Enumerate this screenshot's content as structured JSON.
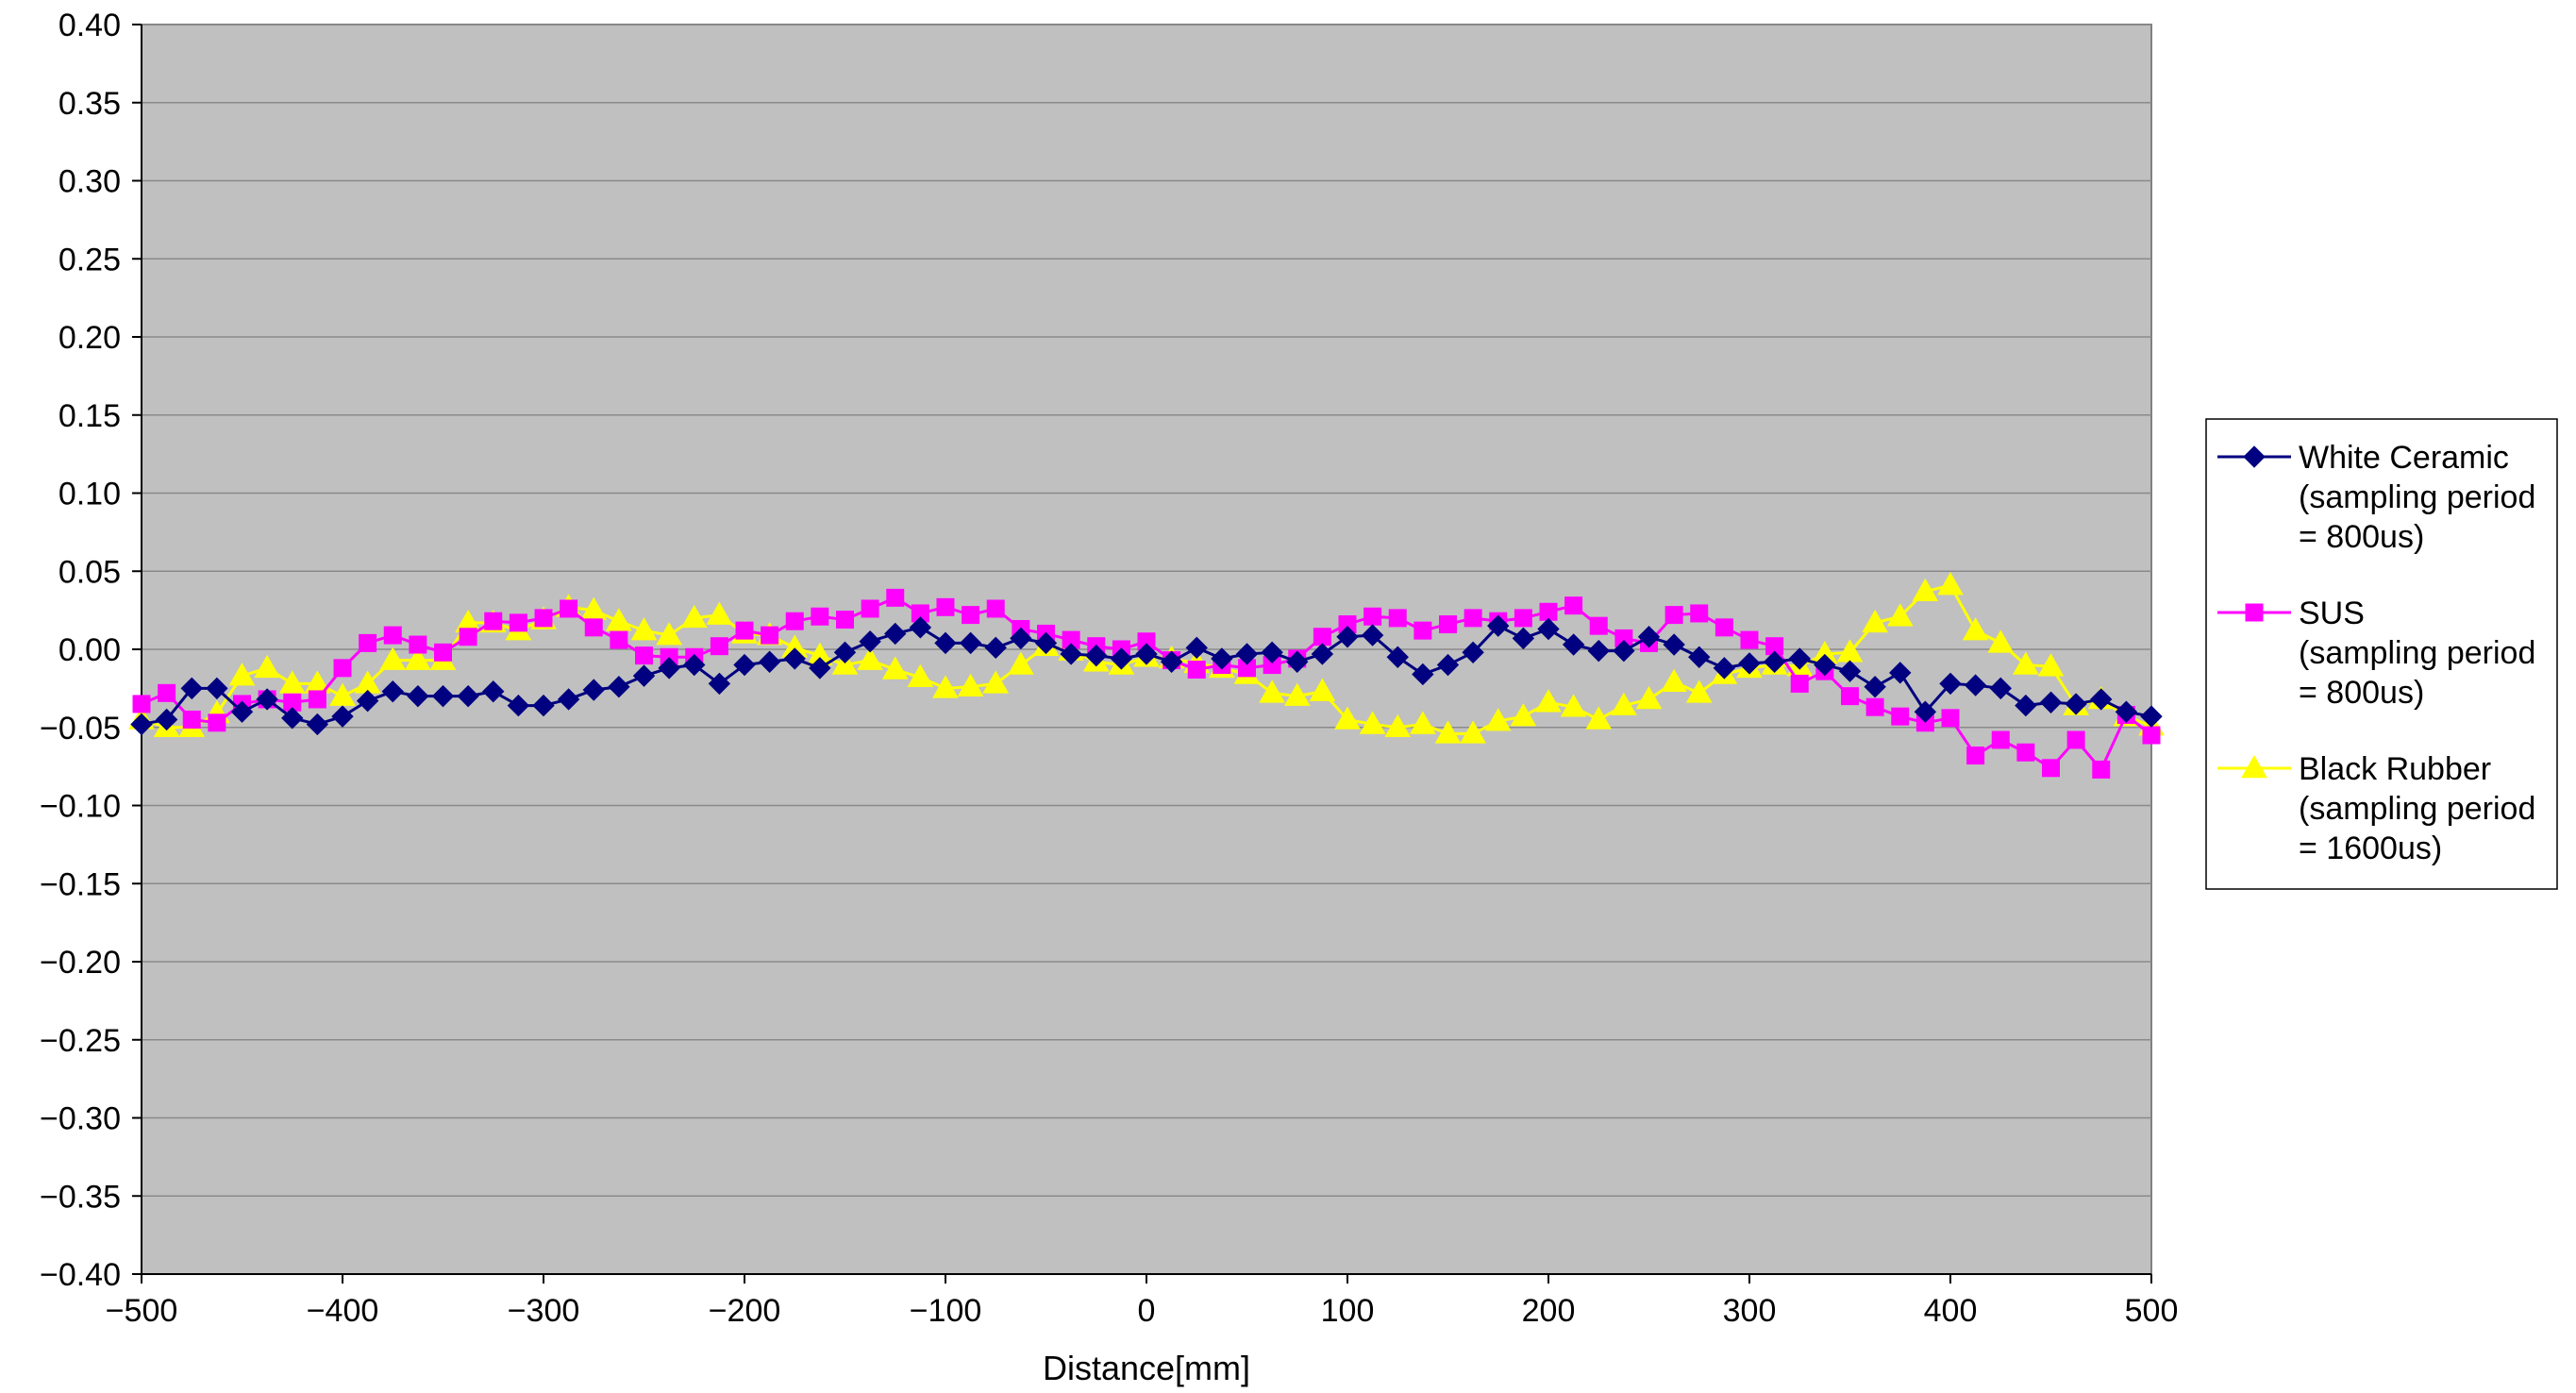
{
  "chart_data": {
    "type": "line",
    "title": "",
    "xlabel": "Distance[mm]",
    "ylabel": "",
    "xlim": [
      -500,
      500
    ],
    "ylim": [
      -0.4,
      0.4
    ],
    "x_ticks": [
      -500,
      -400,
      -300,
      -200,
      -100,
      0,
      100,
      200,
      300,
      400,
      500
    ],
    "x_tick_labels": [
      "−500",
      "−400",
      "−300",
      "−200",
      "−100",
      "0",
      "100",
      "200",
      "300",
      "400",
      "500"
    ],
    "y_ticks": [
      0.4,
      0.35,
      0.3,
      0.25,
      0.2,
      0.15,
      0.1,
      0.05,
      0.0,
      -0.05,
      -0.1,
      -0.15,
      -0.2,
      -0.25,
      -0.3,
      -0.35,
      -0.4
    ],
    "y_tick_labels": [
      "0.40",
      "0.35",
      "0.30",
      "0.25",
      "0.20",
      "0.15",
      "0.10",
      "0.05",
      "0.00",
      "−0.05",
      "−0.10",
      "−0.15",
      "−0.20",
      "−0.25",
      "−0.30",
      "−0.35",
      "−0.40"
    ],
    "grid": {
      "horizontal": true,
      "vertical": false
    },
    "plot_background": "#c0c0c0",
    "legend_position": "right",
    "series": [
      {
        "name": "White Ceramic",
        "legend_lines": [
          "White Ceramic",
          "(sampling period",
          "= 800us)"
        ],
        "color": "#000080",
        "marker": "diamond",
        "x": [
          -500,
          -487.5,
          -475,
          -462.5,
          -450,
          -437.5,
          -425,
          -412.5,
          -400,
          -387.5,
          -375,
          -362.5,
          -350,
          -337.5,
          -325,
          -312.5,
          -300,
          -287.5,
          -275,
          -262.5,
          -250,
          -237.5,
          -225,
          -212.5,
          -200,
          -187.5,
          -175,
          -162.5,
          -150,
          -137.5,
          -125,
          -112.5,
          -100,
          -87.5,
          -75,
          -62.5,
          -50,
          -37.5,
          -25,
          -12.5,
          0,
          12.5,
          25,
          37.5,
          50,
          62.5,
          75,
          87.5,
          100,
          112.5,
          125,
          137.5,
          150,
          162.5,
          175,
          187.5,
          200,
          212.5,
          225,
          237.5,
          250,
          262.5,
          275,
          287.5,
          300,
          312.5,
          325,
          337.5,
          350,
          362.5,
          375,
          387.5,
          400,
          412.5,
          425,
          437.5,
          450,
          462.5,
          475,
          487.5,
          500
        ],
        "values": [
          -0.048,
          -0.045,
          -0.025,
          -0.025,
          -0.04,
          -0.032,
          -0.044,
          -0.048,
          -0.043,
          -0.033,
          -0.027,
          -0.03,
          -0.03,
          -0.03,
          -0.027,
          -0.036,
          -0.036,
          -0.032,
          -0.026,
          -0.024,
          -0.017,
          -0.012,
          -0.01,
          -0.022,
          -0.01,
          -0.008,
          -0.006,
          -0.012,
          -0.002,
          0.005,
          0.01,
          0.014,
          0.004,
          0.004,
          0.001,
          0.007,
          0.004,
          -0.003,
          -0.004,
          -0.006,
          -0.003,
          -0.008,
          0.001,
          -0.006,
          -0.003,
          -0.002,
          -0.008,
          -0.003,
          0.008,
          0.009,
          -0.005,
          -0.016,
          -0.01,
          -0.002,
          0.015,
          0.007,
          0.013,
          0.003,
          -0.001,
          -0.001,
          0.008,
          0.003,
          -0.005,
          -0.012,
          -0.009,
          -0.008,
          -0.006,
          -0.01,
          -0.014,
          -0.024,
          -0.015,
          -0.04,
          -0.022,
          -0.023,
          -0.025,
          -0.036,
          -0.034,
          -0.035,
          -0.032,
          -0.04,
          -0.043
        ]
      },
      {
        "name": "SUS",
        "legend_lines": [
          "SUS",
          "(sampling period",
          "= 800us)"
        ],
        "color": "#ff00ff",
        "marker": "square",
        "x": [
          -500,
          -487.5,
          -475,
          -462.5,
          -450,
          -437.5,
          -425,
          -412.5,
          -400,
          -387.5,
          -375,
          -362.5,
          -350,
          -337.5,
          -325,
          -312.5,
          -300,
          -287.5,
          -275,
          -262.5,
          -250,
          -237.5,
          -225,
          -212.5,
          -200,
          -187.5,
          -175,
          -162.5,
          -150,
          -137.5,
          -125,
          -112.5,
          -100,
          -87.5,
          -75,
          -62.5,
          -50,
          -37.5,
          -25,
          -12.5,
          0,
          12.5,
          25,
          37.5,
          50,
          62.5,
          75,
          87.5,
          100,
          112.5,
          125,
          137.5,
          150,
          162.5,
          175,
          187.5,
          200,
          212.5,
          225,
          237.5,
          250,
          262.5,
          275,
          287.5,
          300,
          312.5,
          325,
          337.5,
          350,
          362.5,
          375,
          387.5,
          400,
          412.5,
          425,
          437.5,
          450,
          462.5,
          475,
          487.5,
          500
        ],
        "values": [
          -0.035,
          -0.028,
          -0.045,
          -0.047,
          -0.035,
          -0.032,
          -0.034,
          -0.032,
          -0.012,
          0.004,
          0.009,
          0.003,
          -0.002,
          0.008,
          0.018,
          0.017,
          0.02,
          0.026,
          0.014,
          0.006,
          -0.004,
          -0.005,
          -0.005,
          0.002,
          0.012,
          0.009,
          0.018,
          0.021,
          0.019,
          0.026,
          0.033,
          0.023,
          0.027,
          0.022,
          0.026,
          0.013,
          0.01,
          0.006,
          0.002,
          0.0,
          0.005,
          -0.007,
          -0.013,
          -0.01,
          -0.012,
          -0.01,
          -0.006,
          0.008,
          0.016,
          0.021,
          0.02,
          0.012,
          0.016,
          0.02,
          0.018,
          0.02,
          0.024,
          0.028,
          0.015,
          0.007,
          0.004,
          0.022,
          0.023,
          0.014,
          0.006,
          0.002,
          -0.022,
          -0.014,
          -0.03,
          -0.037,
          -0.043,
          -0.047,
          -0.044,
          -0.068,
          -0.058,
          -0.066,
          -0.076,
          -0.058,
          -0.077,
          -0.042,
          -0.055
        ]
      },
      {
        "name": "Black Rubber",
        "legend_lines": [
          "Black Rubber",
          "(sampling period",
          "= 1600us)"
        ],
        "color": "#ffff00",
        "marker": "triangle",
        "x": [
          -500,
          -487.5,
          -475,
          -462.5,
          -450,
          -437.5,
          -425,
          -412.5,
          -400,
          -387.5,
          -375,
          -362.5,
          -350,
          -337.5,
          -325,
          -312.5,
          -300,
          -287.5,
          -275,
          -262.5,
          -250,
          -237.5,
          -225,
          -212.5,
          -200,
          -187.5,
          -175,
          -162.5,
          -150,
          -137.5,
          -125,
          -112.5,
          -100,
          -87.5,
          -75,
          -62.5,
          -50,
          -37.5,
          -25,
          -12.5,
          0,
          12.5,
          25,
          37.5,
          50,
          62.5,
          75,
          87.5,
          100,
          112.5,
          125,
          137.5,
          150,
          162.5,
          175,
          187.5,
          200,
          212.5,
          225,
          237.5,
          250,
          262.5,
          275,
          287.5,
          300,
          312.5,
          325,
          337.5,
          350,
          362.5,
          375,
          387.5,
          400,
          412.5,
          425,
          437.5,
          450,
          462.5,
          475,
          487.5,
          500
        ],
        "values": [
          -0.045,
          -0.05,
          -0.05,
          -0.041,
          -0.017,
          -0.012,
          -0.022,
          -0.022,
          -0.03,
          -0.022,
          -0.007,
          -0.007,
          -0.007,
          0.017,
          0.017,
          0.012,
          0.019,
          0.027,
          0.025,
          0.018,
          0.012,
          0.009,
          0.02,
          0.022,
          0.01,
          0.009,
          0.001,
          -0.004,
          -0.01,
          -0.007,
          -0.013,
          -0.018,
          -0.025,
          -0.024,
          -0.022,
          -0.01,
          0.002,
          -0.001,
          -0.008,
          -0.01,
          -0.005,
          -0.006,
          -0.009,
          -0.012,
          -0.016,
          -0.028,
          -0.03,
          -0.027,
          -0.045,
          -0.048,
          -0.05,
          -0.048,
          -0.054,
          -0.054,
          -0.046,
          -0.043,
          -0.034,
          -0.037,
          -0.045,
          -0.036,
          -0.032,
          -0.021,
          -0.028,
          -0.016,
          -0.012,
          -0.01,
          -0.011,
          -0.003,
          -0.002,
          0.017,
          0.021,
          0.037,
          0.041,
          0.012,
          0.004,
          -0.01,
          -0.011,
          -0.036,
          -0.032,
          -0.043,
          -0.049
        ]
      }
    ]
  }
}
